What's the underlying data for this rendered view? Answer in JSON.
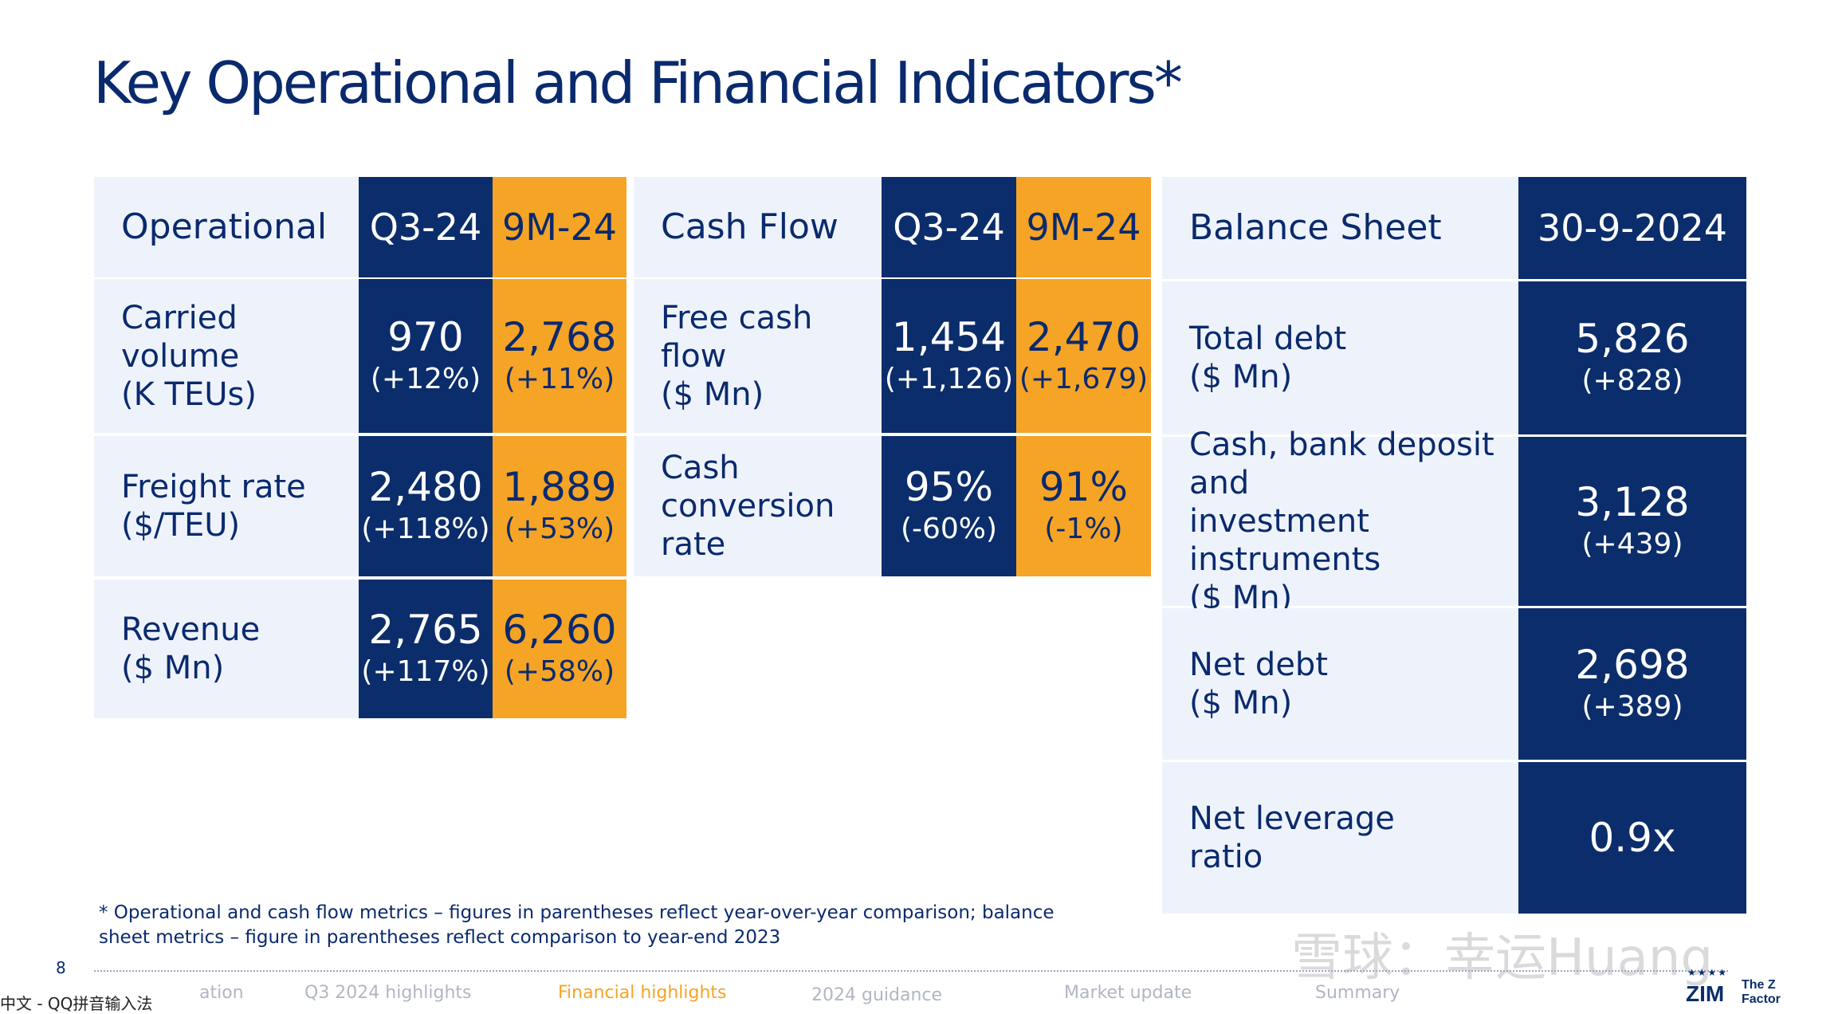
{
  "title": "Key Operational and Financial Indicators*",
  "operational": {
    "header": "Operational",
    "col1": "Q3-24",
    "col2": "9M-24",
    "rows": [
      {
        "label1": "Carried volume",
        "label2": "(K TEUs)",
        "q3": "970",
        "q3c": "(+12%)",
        "m9": "2,768",
        "m9c": "(+11%)"
      },
      {
        "label1": "Freight rate",
        "label2": "($/TEU)",
        "q3": "2,480",
        "q3c": "(+118%)",
        "m9": "1,889",
        "m9c": "(+53%)"
      },
      {
        "label1": "Revenue",
        "label2": "($ Mn)",
        "q3": "2,765",
        "q3c": "(+117%)",
        "m9": "6,260",
        "m9c": "(+58%)"
      }
    ]
  },
  "cashflow": {
    "header": "Cash Flow",
    "col1": "Q3-24",
    "col2": "9M-24",
    "rows": [
      {
        "label1": "Free cash flow",
        "label2": "($ Mn)",
        "q3": "1,454",
        "q3c": "(+1,126)",
        "m9": "2,470",
        "m9c": "(+1,679)"
      },
      {
        "label1": "Cash",
        "label2": "conversion rate",
        "q3": "95%",
        "q3c": "(-60%)",
        "m9": "91%",
        "m9c": "(-1%)"
      }
    ]
  },
  "balance": {
    "header": "Balance Sheet",
    "col1": "30-9-2024",
    "rows": [
      {
        "label1": "Total debt",
        "label2": "($ Mn)",
        "label3": "",
        "v": "5,826",
        "c": "(+828)"
      },
      {
        "label1": "Cash, bank deposit and",
        "label2": "investment instruments",
        "label3": "($ Mn)",
        "v": "3,128",
        "c": "(+439)"
      },
      {
        "label1": "Net debt",
        "label2": "($ Mn)",
        "label3": "",
        "v": "2,698",
        "c": "(+389)"
      },
      {
        "label1": "Net leverage",
        "label2": "ratio",
        "label3": "",
        "v": "0.9x",
        "c": ""
      }
    ]
  },
  "footnote": {
    "line1": "* Operational and cash flow metrics – figures in parentheses reflect year-over-year comparison; balance",
    "line2": "sheet metrics – figure in parentheses reflect comparison to year-end 2023"
  },
  "page_number": "8",
  "nav": {
    "items": [
      "ation",
      "Q3 2024 highlights",
      "Financial highlights",
      "2024 guidance",
      "Market update",
      "Summary"
    ],
    "active": "Financial highlights"
  },
  "watermark": "雪球：幸运Huang",
  "ime_text": "中文 - QQ拼音输入法",
  "logo": {
    "brand": "ZIM",
    "tagline": "The Z Factor"
  },
  "colors": {
    "navy": "#0b2d6b",
    "orange": "#f6a425",
    "label_bg": "#eef3fb",
    "title": "#0a2a6e"
  }
}
